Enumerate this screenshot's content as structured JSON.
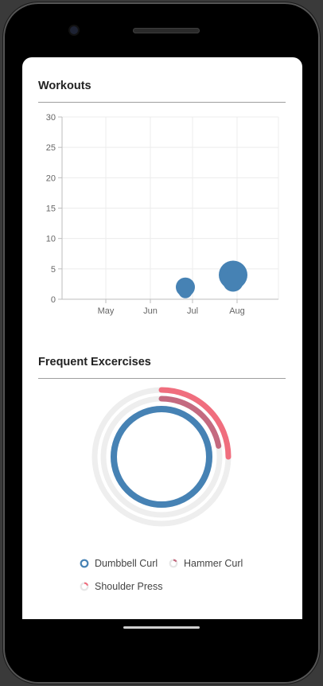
{
  "workouts": {
    "title": "Workouts",
    "chart_data": {
      "type": "scatter",
      "title": "Workouts",
      "x_ticks": [
        "May",
        "Jun",
        "Jul",
        "Aug"
      ],
      "y_ticks": [
        0,
        5,
        10,
        15,
        20,
        25,
        30
      ],
      "ylim": [
        0,
        30
      ],
      "grid": true,
      "points": [
        {
          "x": "Jul",
          "y": 2,
          "size": 2
        },
        {
          "x": "Aug",
          "y": 4,
          "size": 4
        }
      ],
      "color": "#4682b4"
    }
  },
  "exercises": {
    "title": "Frequent Excercises",
    "chart_data": {
      "type": "radial-bar",
      "series": [
        {
          "name": "Dumbbell Curl",
          "value": 1.0,
          "color": "#4682b4"
        },
        {
          "name": "Hammer Curl",
          "value": 0.22,
          "color": "#c46a80"
        },
        {
          "name": "Shoulder Press",
          "value": 0.25,
          "color": "#f06e7e"
        }
      ],
      "track_color": "#eeeeee"
    }
  }
}
